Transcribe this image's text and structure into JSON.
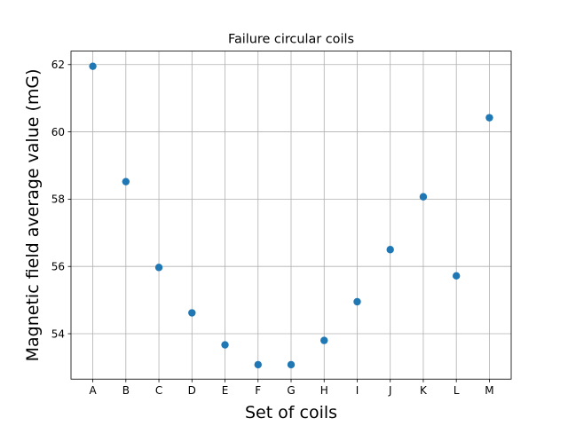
{
  "chart_data": {
    "type": "scatter",
    "title": "Failure circular coils",
    "xlabel": "Set of coils",
    "ylabel": "Magnetic field average value (mG)",
    "categories": [
      "A",
      "B",
      "C",
      "D",
      "E",
      "F",
      "G",
      "H",
      "I",
      "J",
      "K",
      "L",
      "M"
    ],
    "series": [
      {
        "values": [
          61.95,
          58.52,
          55.97,
          54.62,
          53.67,
          53.08,
          53.08,
          53.8,
          54.95,
          56.5,
          58.07,
          55.72,
          60.42
        ],
        "color": "#1f77b4"
      }
    ],
    "ylim": [
      52.65,
      62.4
    ],
    "yticks": [
      54,
      56,
      58,
      60,
      62
    ],
    "ytick_labels": [
      "54",
      "56",
      "58",
      "60",
      "62"
    ],
    "grid": true,
    "legend": "none"
  }
}
